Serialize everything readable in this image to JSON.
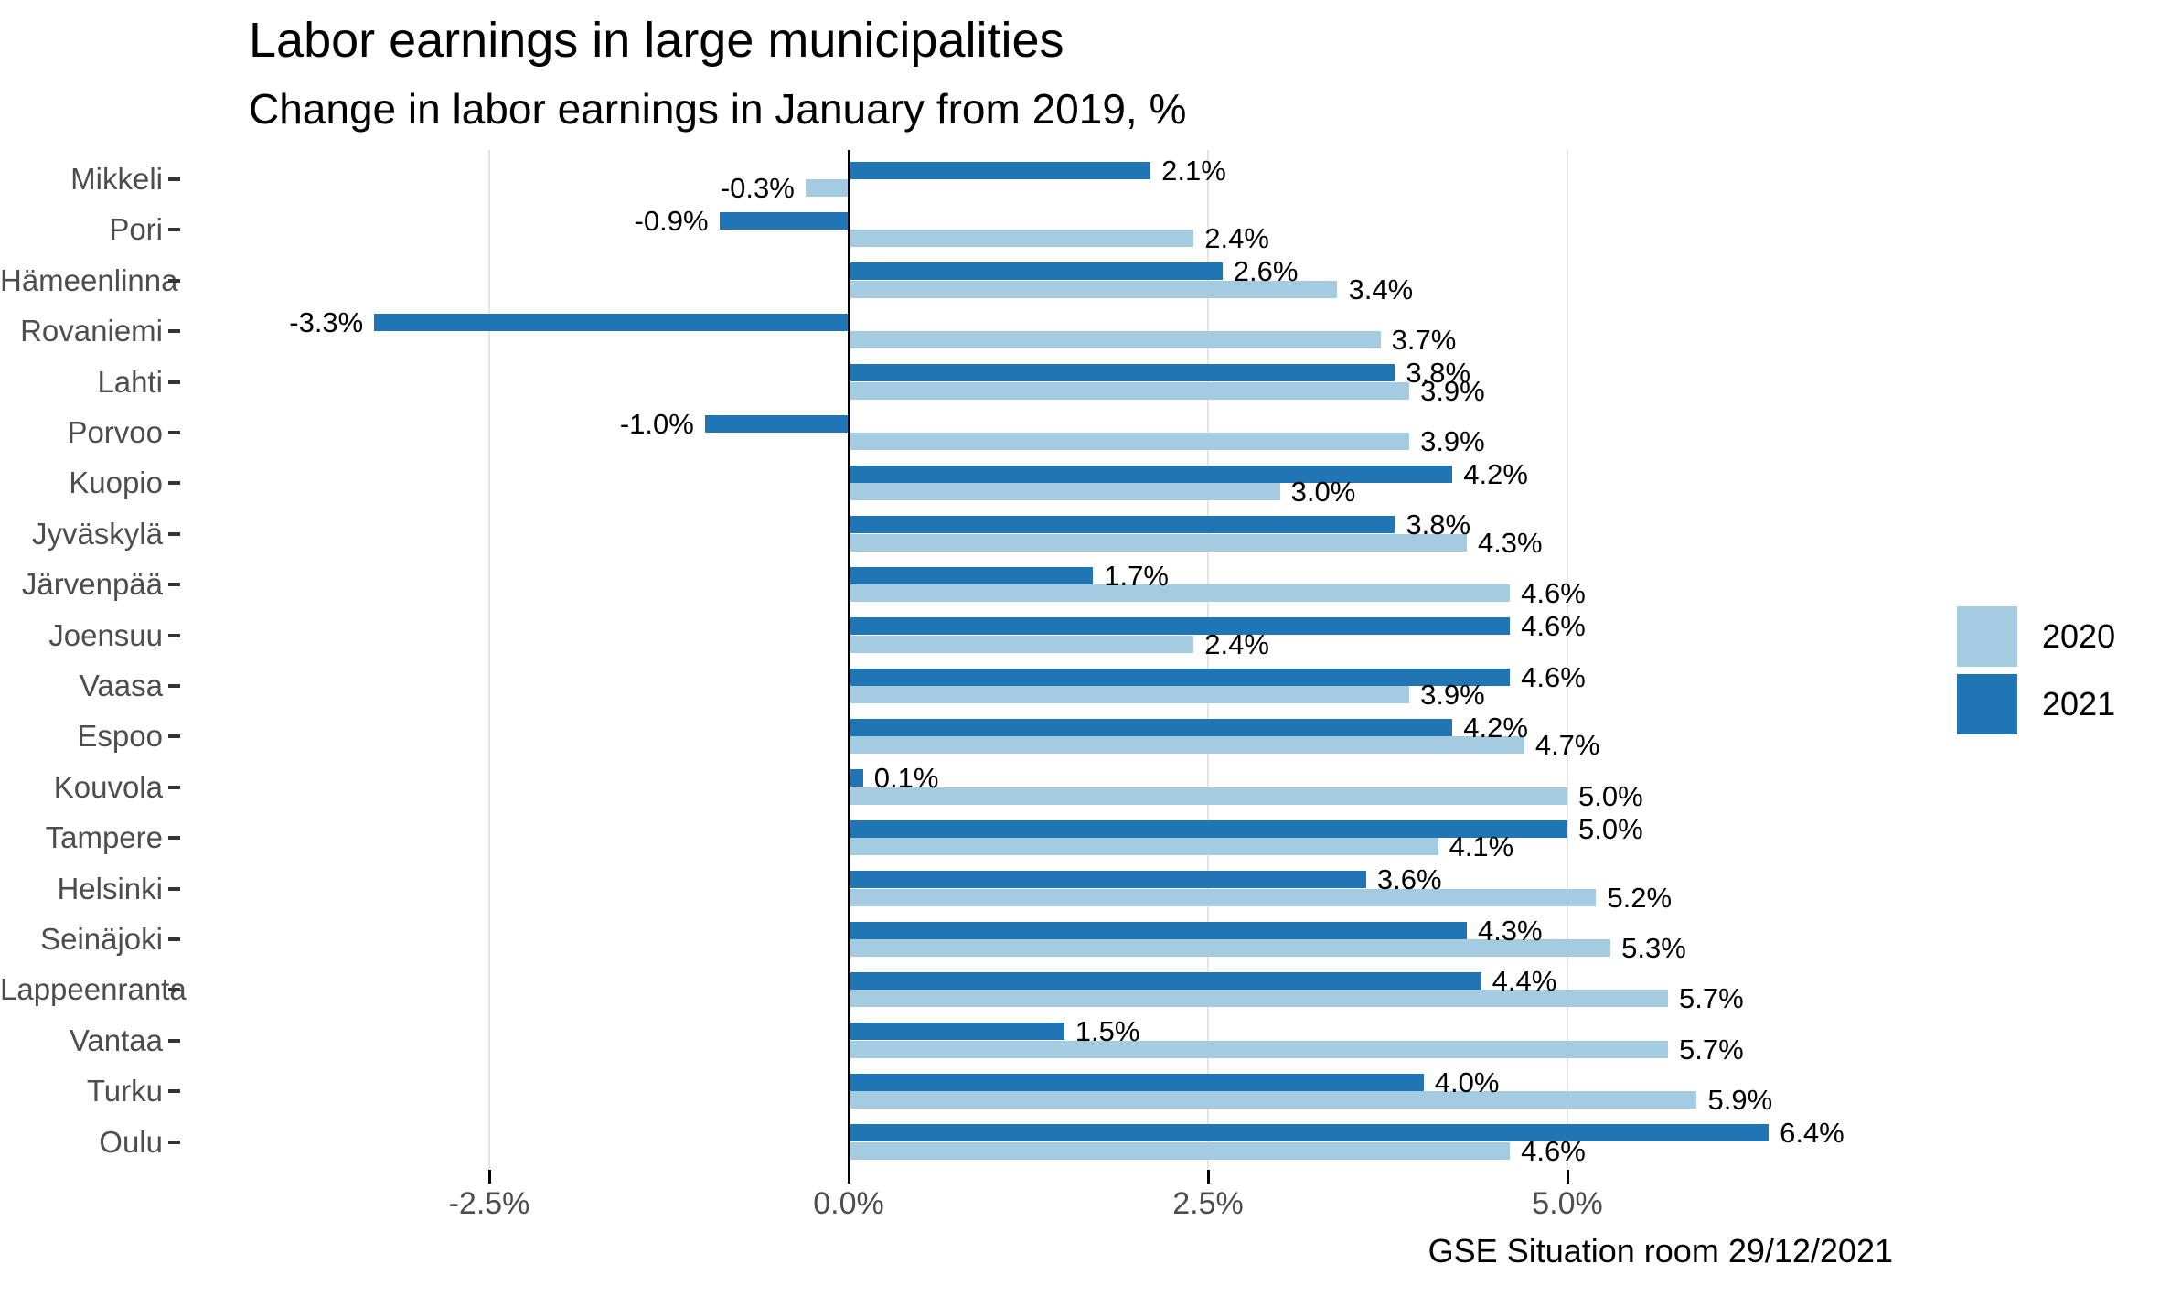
{
  "chart_data": {
    "type": "bar",
    "orientation": "horizontal",
    "title": "Labor earnings in large municipalities",
    "subtitle": "Change in labor earnings in January from 2019, %",
    "caption": "GSE Situation room 29/12/2021",
    "categories": [
      "Mikkeli",
      "Pori",
      "Hämeenlinna",
      "Rovaniemi",
      "Lahti",
      "Porvoo",
      "Kuopio",
      "Jyväskylä",
      "Järvenpää",
      "Joensuu",
      "Vaasa",
      "Espoo",
      "Kouvola",
      "Tampere",
      "Helsinki",
      "Seinäjoki",
      "Lappeenranta",
      "Vantaa",
      "Turku",
      "Oulu"
    ],
    "series": [
      {
        "name": "2020",
        "color": "#a5cbe0",
        "values": [
          -0.3,
          2.4,
          3.4,
          3.7,
          3.9,
          3.9,
          3.0,
          4.3,
          4.6,
          2.4,
          3.9,
          4.7,
          5.0,
          4.1,
          5.2,
          5.3,
          5.7,
          5.7,
          5.9,
          4.6
        ]
      },
      {
        "name": "2021",
        "color": "#2076b4",
        "values": [
          2.1,
          -0.9,
          2.6,
          -3.3,
          3.8,
          -1.0,
          4.2,
          3.8,
          1.7,
          4.6,
          4.6,
          4.2,
          0.1,
          5.0,
          3.6,
          4.3,
          4.4,
          1.5,
          4.0,
          6.4
        ]
      }
    ],
    "group_draw_order": [
      "2021",
      "2020"
    ],
    "value_label_suffix": "%",
    "x_axis": {
      "ticks": [
        {
          "value": -2.5,
          "label": "-2.5%"
        },
        {
          "value": 0,
          "label": "0.0%"
        },
        {
          "value": 2.5,
          "label": "2.5%"
        },
        {
          "value": 5,
          "label": "5.0%"
        }
      ]
    },
    "legend": {
      "position": "right",
      "entries": [
        "2020",
        "2021"
      ]
    },
    "styles": {
      "background": "#ffffff",
      "grid_color": "#e5e5e5",
      "zero_axis_color": "#000000",
      "axis_text_color": "#4d4d4d",
      "value_label_color": "#000000",
      "title_color": "#000000"
    }
  }
}
